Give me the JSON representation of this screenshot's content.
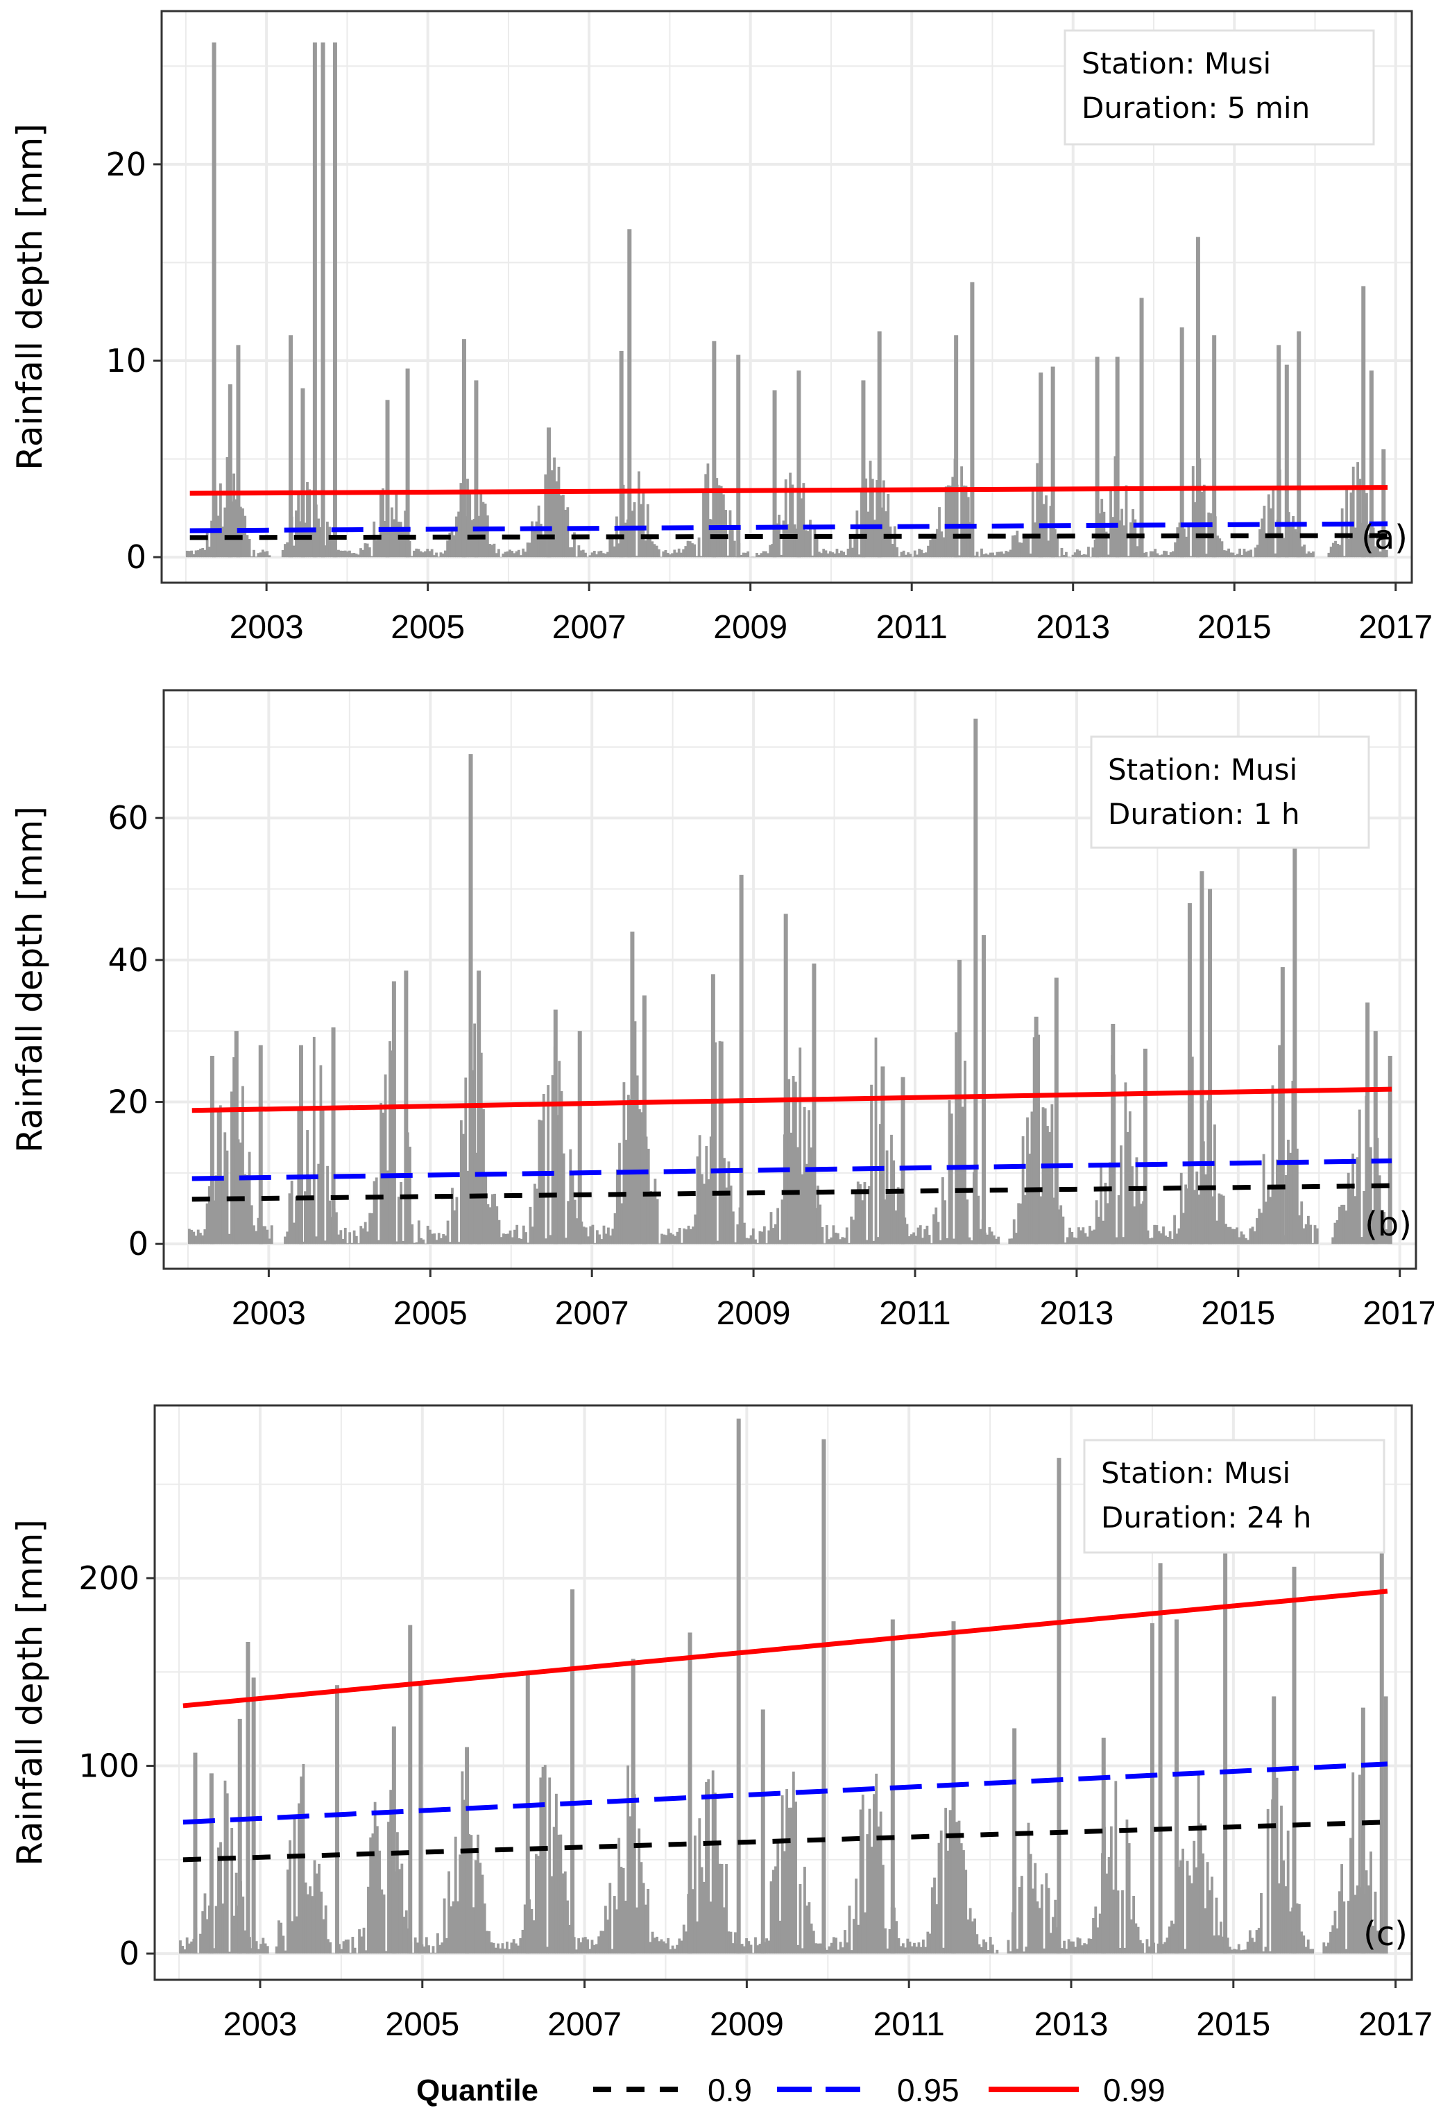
{
  "chart_data": [
    {
      "type": "bar",
      "panel_tag": "(a)",
      "info": {
        "station": "Station: Musi",
        "duration": "Duration: 5 min"
      },
      "ylabel": "Rainfall depth [mm]",
      "xlabel": "",
      "xlim": [
        2001.7,
        2017.2
      ],
      "ylim": [
        -1.3,
        27.8
      ],
      "yticks": [
        0,
        10,
        20
      ],
      "xticks": [
        2003,
        2005,
        2007,
        2009,
        2011,
        2013,
        2015,
        2017
      ],
      "grid": true,
      "data_range": [
        2002.0,
        2016.9
      ],
      "typical_level": 2.0,
      "peaks": [
        {
          "x": 2002.35,
          "y": 26.2
        },
        {
          "x": 2002.65,
          "y": 10.8
        },
        {
          "x": 2002.55,
          "y": 8.8
        },
        {
          "x": 2003.3,
          "y": 11.3
        },
        {
          "x": 2003.45,
          "y": 8.6
        },
        {
          "x": 2003.6,
          "y": 26.2
        },
        {
          "x": 2003.7,
          "y": 26.2
        },
        {
          "x": 2003.85,
          "y": 26.2
        },
        {
          "x": 2004.5,
          "y": 8.0
        },
        {
          "x": 2004.75,
          "y": 9.6
        },
        {
          "x": 2005.45,
          "y": 11.1
        },
        {
          "x": 2005.6,
          "y": 9.0
        },
        {
          "x": 2006.5,
          "y": 6.6
        },
        {
          "x": 2007.5,
          "y": 16.7
        },
        {
          "x": 2007.4,
          "y": 10.5
        },
        {
          "x": 2008.55,
          "y": 11.0
        },
        {
          "x": 2008.85,
          "y": 10.3
        },
        {
          "x": 2009.3,
          "y": 8.5
        },
        {
          "x": 2009.6,
          "y": 9.5
        },
        {
          "x": 2010.4,
          "y": 9.0
        },
        {
          "x": 2010.6,
          "y": 11.5
        },
        {
          "x": 2011.55,
          "y": 11.3
        },
        {
          "x": 2011.75,
          "y": 14.0
        },
        {
          "x": 2012.6,
          "y": 9.4
        },
        {
          "x": 2012.75,
          "y": 9.7
        },
        {
          "x": 2013.3,
          "y": 10.2
        },
        {
          "x": 2013.55,
          "y": 10.2
        },
        {
          "x": 2013.85,
          "y": 13.2
        },
        {
          "x": 2014.35,
          "y": 11.7
        },
        {
          "x": 2014.55,
          "y": 16.3
        },
        {
          "x": 2014.75,
          "y": 11.3
        },
        {
          "x": 2015.55,
          "y": 10.8
        },
        {
          "x": 2015.65,
          "y": 9.8
        },
        {
          "x": 2015.8,
          "y": 11.5
        },
        {
          "x": 2016.6,
          "y": 13.8
        },
        {
          "x": 2016.7,
          "y": 9.5
        },
        {
          "x": 2016.85,
          "y": 5.5
        }
      ],
      "gaps": [
        [
          2003.05,
          2003.2
        ],
        [
          2016.0,
          2016.15
        ]
      ],
      "series": [
        {
          "name": "0.9",
          "start": 1.0,
          "end": 1.1
        },
        {
          "name": "0.95",
          "start": 1.35,
          "end": 1.7
        },
        {
          "name": "0.99",
          "start": 3.25,
          "end": 3.55
        }
      ]
    },
    {
      "type": "bar",
      "panel_tag": "(b)",
      "info": {
        "station": "Station: Musi",
        "duration": "Duration: 1 h"
      },
      "ylabel": "Rainfall depth [mm]",
      "xlabel": "",
      "xlim": [
        2001.7,
        2017.2
      ],
      "ylim": [
        -3.5,
        78
      ],
      "yticks": [
        0,
        20,
        40,
        60
      ],
      "xticks": [
        2003,
        2005,
        2007,
        2009,
        2011,
        2013,
        2015,
        2017
      ],
      "grid": true,
      "data_range": [
        2002.0,
        2016.9
      ],
      "typical_level": 12,
      "peaks": [
        {
          "x": 2002.3,
          "y": 26.5
        },
        {
          "x": 2002.6,
          "y": 30.0
        },
        {
          "x": 2002.9,
          "y": 28.0
        },
        {
          "x": 2003.4,
          "y": 28.0
        },
        {
          "x": 2003.8,
          "y": 30.5
        },
        {
          "x": 2004.55,
          "y": 37.0
        },
        {
          "x": 2004.7,
          "y": 38.5
        },
        {
          "x": 2005.5,
          "y": 69.0
        },
        {
          "x": 2005.6,
          "y": 38.5
        },
        {
          "x": 2006.55,
          "y": 33.0
        },
        {
          "x": 2006.85,
          "y": 30.0
        },
        {
          "x": 2007.5,
          "y": 44.0
        },
        {
          "x": 2007.65,
          "y": 35.0
        },
        {
          "x": 2008.5,
          "y": 38.0
        },
        {
          "x": 2008.85,
          "y": 52.0
        },
        {
          "x": 2009.4,
          "y": 46.5
        },
        {
          "x": 2009.75,
          "y": 39.5
        },
        {
          "x": 2010.6,
          "y": 25.0
        },
        {
          "x": 2010.85,
          "y": 23.5
        },
        {
          "x": 2011.55,
          "y": 40.0
        },
        {
          "x": 2011.75,
          "y": 74.0
        },
        {
          "x": 2011.85,
          "y": 43.5
        },
        {
          "x": 2012.5,
          "y": 32.0
        },
        {
          "x": 2012.75,
          "y": 37.5
        },
        {
          "x": 2013.45,
          "y": 31.0
        },
        {
          "x": 2013.85,
          "y": 27.5
        },
        {
          "x": 2014.4,
          "y": 48.0
        },
        {
          "x": 2014.55,
          "y": 52.5
        },
        {
          "x": 2014.65,
          "y": 50.0
        },
        {
          "x": 2015.55,
          "y": 39.0
        },
        {
          "x": 2015.7,
          "y": 57.5
        },
        {
          "x": 2016.6,
          "y": 34.0
        },
        {
          "x": 2016.7,
          "y": 30.0
        },
        {
          "x": 2016.88,
          "y": 26.5
        }
      ],
      "gaps": [
        [
          2003.05,
          2003.2
        ],
        [
          2012.05,
          2012.15
        ],
        [
          2016.0,
          2016.15
        ]
      ],
      "series": [
        {
          "name": "0.9",
          "start": 6.3,
          "end": 8.2
        },
        {
          "name": "0.95",
          "start": 9.2,
          "end": 11.7
        },
        {
          "name": "0.99",
          "start": 18.8,
          "end": 21.8
        }
      ]
    },
    {
      "type": "bar",
      "panel_tag": "(c)",
      "info": {
        "station": "Station: Musi",
        "duration": "Duration: 24 h"
      },
      "ylabel": "Rainfall depth [mm]",
      "xlabel": "",
      "xlim": [
        2001.7,
        2017.2
      ],
      "ylim": [
        -14,
        292
      ],
      "yticks": [
        0,
        100,
        200
      ],
      "xticks": [
        2003,
        2005,
        2007,
        2009,
        2011,
        2013,
        2015,
        2017
      ],
      "grid": true,
      "data_range": [
        2002.0,
        2016.9
      ],
      "typical_level": 40,
      "peaks": [
        {
          "x": 2002.2,
          "y": 107
        },
        {
          "x": 2002.4,
          "y": 96
        },
        {
          "x": 2002.75,
          "y": 125
        },
        {
          "x": 2002.85,
          "y": 166
        },
        {
          "x": 2002.92,
          "y": 147
        },
        {
          "x": 2003.95,
          "y": 143
        },
        {
          "x": 2004.65,
          "y": 121
        },
        {
          "x": 2004.85,
          "y": 175
        },
        {
          "x": 2004.98,
          "y": 144
        },
        {
          "x": 2005.55,
          "y": 110
        },
        {
          "x": 2006.3,
          "y": 150
        },
        {
          "x": 2006.85,
          "y": 194
        },
        {
          "x": 2007.6,
          "y": 157
        },
        {
          "x": 2008.3,
          "y": 171
        },
        {
          "x": 2008.9,
          "y": 285
        },
        {
          "x": 2009.2,
          "y": 130
        },
        {
          "x": 2009.95,
          "y": 274
        },
        {
          "x": 2010.8,
          "y": 178
        },
        {
          "x": 2011.55,
          "y": 177
        },
        {
          "x": 2012.3,
          "y": 120
        },
        {
          "x": 2012.85,
          "y": 264
        },
        {
          "x": 2013.4,
          "y": 115
        },
        {
          "x": 2014.0,
          "y": 176
        },
        {
          "x": 2014.1,
          "y": 208
        },
        {
          "x": 2014.3,
          "y": 178
        },
        {
          "x": 2014.9,
          "y": 225
        },
        {
          "x": 2015.5,
          "y": 137
        },
        {
          "x": 2015.75,
          "y": 206
        },
        {
          "x": 2016.6,
          "y": 131
        },
        {
          "x": 2016.83,
          "y": 222
        },
        {
          "x": 2016.88,
          "y": 137
        }
      ],
      "gaps": [
        [
          2003.1,
          2003.2
        ],
        [
          2012.1,
          2012.2
        ],
        [
          2016.0,
          2016.1
        ]
      ],
      "series": [
        {
          "name": "0.9",
          "start": 50,
          "end": 70
        },
        {
          "name": "0.95",
          "start": 70,
          "end": 101
        },
        {
          "name": "0.99",
          "start": 132,
          "end": 193
        }
      ]
    }
  ],
  "legend": {
    "title": "Quantile",
    "items": [
      {
        "label": "0.9",
        "color": "#000000",
        "style": "dashed"
      },
      {
        "label": "0.95",
        "color": "#0000FF",
        "style": "longdash"
      },
      {
        "label": "0.99",
        "color": "#FF0000",
        "style": "solid"
      }
    ]
  },
  "colors": {
    "bars": "#999999",
    "grid": "#EBEBEB",
    "q90": "#000000",
    "q95": "#0000FF",
    "q99": "#FF0000"
  }
}
